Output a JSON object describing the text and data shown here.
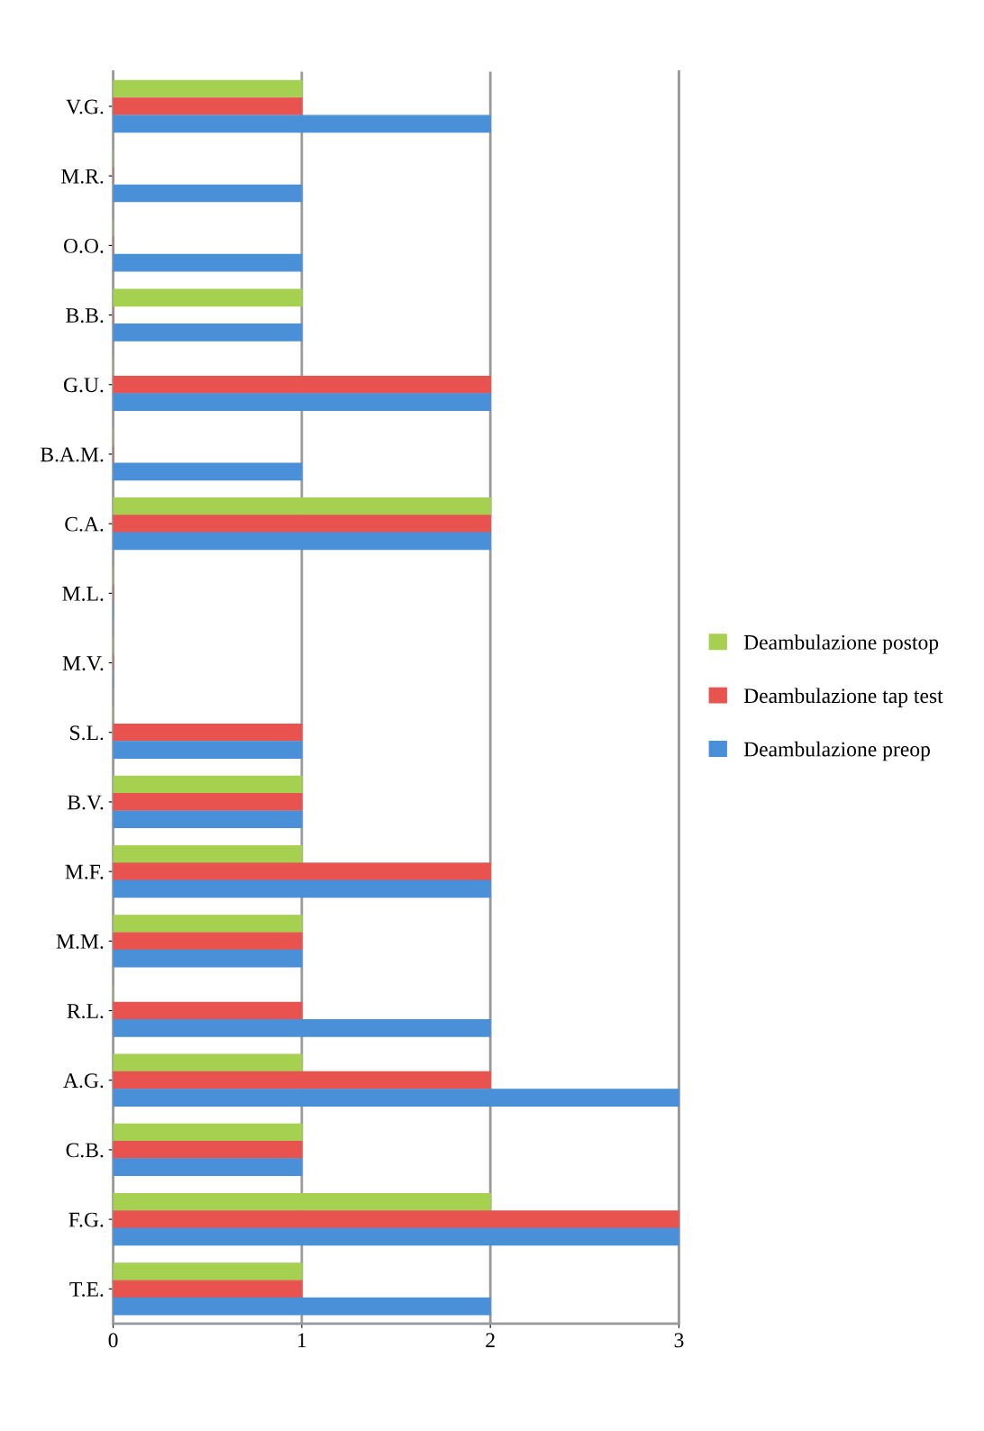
{
  "chart_data": {
    "type": "bar",
    "orientation": "horizontal",
    "categories": [
      "V.G.",
      "M.R.",
      "O.O.",
      "B.B.",
      "G.U.",
      "B.A.M.",
      "C.A.",
      "M.L.",
      "M.V.",
      "S.L.",
      "B.V.",
      "M.F.",
      "M.M.",
      "R.L.",
      "A.G.",
      "C.B.",
      "F.G.",
      "T.E."
    ],
    "series": [
      {
        "name": "Deambulazione postop",
        "color": "#a6d050",
        "values": [
          1,
          0,
          0,
          1,
          0,
          0,
          2,
          0,
          0,
          0,
          1,
          1,
          1,
          0,
          1,
          1,
          2,
          1
        ]
      },
      {
        "name": "Deambulazione tap test",
        "color": "#e8534f",
        "values": [
          1,
          0,
          0,
          0,
          2,
          0,
          2,
          0,
          0,
          1,
          1,
          2,
          1,
          1,
          2,
          1,
          3,
          1
        ]
      },
      {
        "name": "Deambulazione preop",
        "color": "#4a90d9",
        "values": [
          2,
          1,
          1,
          1,
          2,
          1,
          2,
          0,
          0,
          1,
          1,
          2,
          1,
          2,
          3,
          1,
          3,
          2
        ]
      }
    ],
    "xlim": [
      0,
      3
    ],
    "xticks": [
      0,
      1,
      2,
      3
    ],
    "grid": "x",
    "legend": "right"
  }
}
